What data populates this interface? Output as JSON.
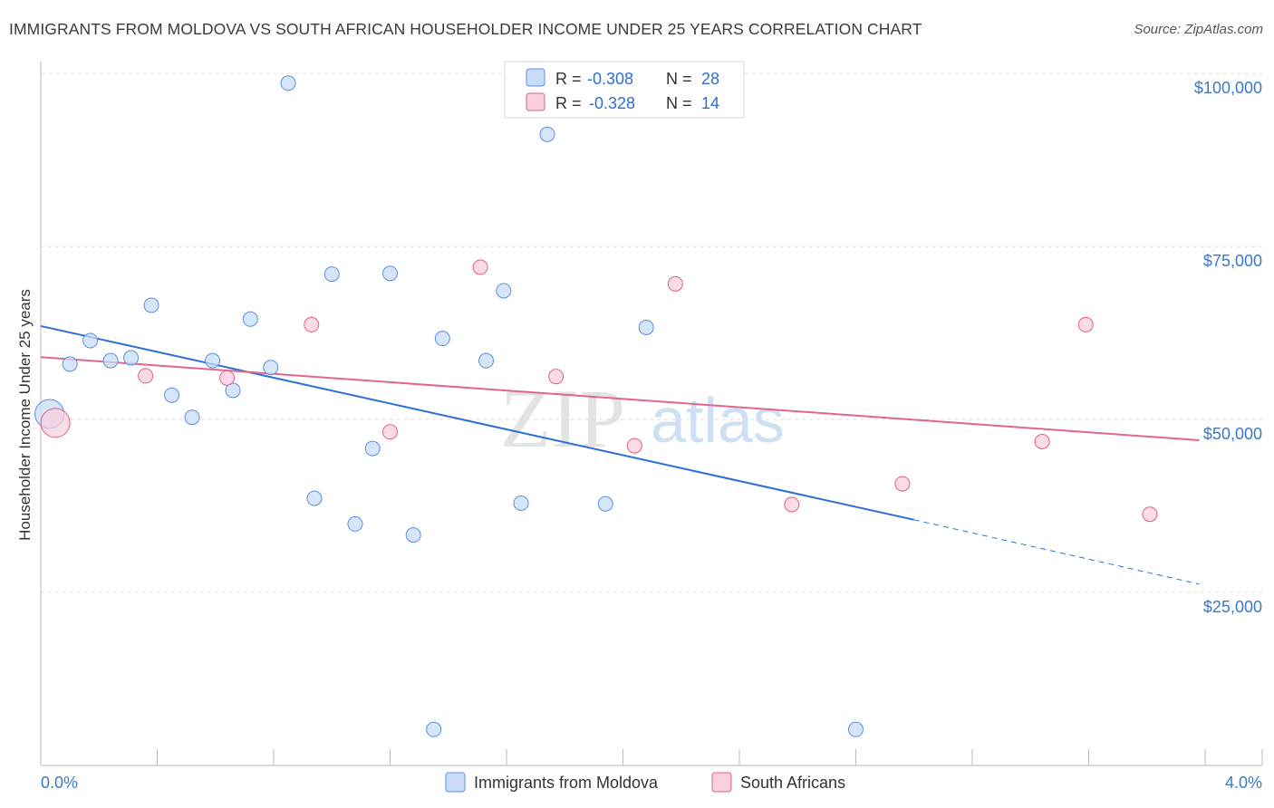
{
  "title": "IMMIGRANTS FROM MOLDOVA VS SOUTH AFRICAN HOUSEHOLDER INCOME UNDER 25 YEARS CORRELATION CHART",
  "source": "Source: ZipAtlas.com",
  "colors": {
    "blue": "#5b8fe0",
    "blue_fill": "#c9dcf7",
    "blue_line": "#2b6fd6",
    "pink": "#e0608a",
    "pink_fill": "#f9cfdc",
    "pink_line": "#e2658f",
    "axis_text": "#3b78c8",
    "grid": "#dddddd"
  },
  "legend": {
    "r_label": "R =",
    "n_label": "N =",
    "rows": [
      {
        "series": "moldova",
        "r": "-0.308",
        "n": "28"
      },
      {
        "series": "south_african",
        "r": "-0.328",
        "n": "14"
      }
    ]
  },
  "watermark": {
    "zip": "ZIP",
    "atlas": "atlas"
  },
  "chart_data": {
    "type": "scatter",
    "title": "IMMIGRANTS FROM MOLDOVA VS SOUTH AFRICAN HOUSEHOLDER INCOME UNDER 25 YEARS CORRELATION CHART",
    "xlabel": "",
    "ylabel": "Householder Income Under 25 years",
    "xlim": [
      0.0,
      4.0
    ],
    "ylim": [
      0,
      102500
    ],
    "x_tick_labels": [
      "0.0%",
      "4.0%"
    ],
    "y_ticks": [
      25000,
      50000,
      75000,
      100000
    ],
    "y_tick_labels": [
      "$25,000",
      "$50,000",
      "$75,000",
      "$100,000"
    ],
    "series": [
      {
        "name": "Immigrants from Moldova",
        "key": "moldova",
        "points": [
          {
            "x": 0.03,
            "y": 50800,
            "big": true
          },
          {
            "x": 0.1,
            "y": 58000
          },
          {
            "x": 0.17,
            "y": 61400
          },
          {
            "x": 0.24,
            "y": 58500
          },
          {
            "x": 0.31,
            "y": 58900
          },
          {
            "x": 0.38,
            "y": 66500
          },
          {
            "x": 0.45,
            "y": 53500
          },
          {
            "x": 0.52,
            "y": 50300
          },
          {
            "x": 0.59,
            "y": 58500
          },
          {
            "x": 0.66,
            "y": 54200
          },
          {
            "x": 0.72,
            "y": 64500
          },
          {
            "x": 0.79,
            "y": 57500
          },
          {
            "x": 0.85,
            "y": 98600
          },
          {
            "x": 0.94,
            "y": 38600
          },
          {
            "x": 1.0,
            "y": 71000
          },
          {
            "x": 1.08,
            "y": 34900
          },
          {
            "x": 1.14,
            "y": 45800
          },
          {
            "x": 1.2,
            "y": 71100
          },
          {
            "x": 1.28,
            "y": 33300
          },
          {
            "x": 1.35,
            "y": 5200
          },
          {
            "x": 1.38,
            "y": 61700
          },
          {
            "x": 1.53,
            "y": 58500
          },
          {
            "x": 1.59,
            "y": 68600
          },
          {
            "x": 1.65,
            "y": 37900
          },
          {
            "x": 1.74,
            "y": 91200
          },
          {
            "x": 1.94,
            "y": 37800
          },
          {
            "x": 2.08,
            "y": 63300
          },
          {
            "x": 2.8,
            "y": 5200
          }
        ],
        "trend": {
          "x0": 0.0,
          "y0": 63500,
          "x1": 3.0,
          "y1": 35500,
          "dash_x1": 3.98,
          "dash_y1": 26200
        }
      },
      {
        "name": "South Africans",
        "key": "south_african",
        "points": [
          {
            "x": 0.05,
            "y": 49500,
            "big": true
          },
          {
            "x": 0.36,
            "y": 56300
          },
          {
            "x": 0.64,
            "y": 56000
          },
          {
            "x": 0.93,
            "y": 63700
          },
          {
            "x": 1.2,
            "y": 48200
          },
          {
            "x": 1.51,
            "y": 72000
          },
          {
            "x": 1.77,
            "y": 56200
          },
          {
            "x": 2.04,
            "y": 46200
          },
          {
            "x": 2.18,
            "y": 69600
          },
          {
            "x": 2.58,
            "y": 37700
          },
          {
            "x": 2.96,
            "y": 40700
          },
          {
            "x": 3.44,
            "y": 46800
          },
          {
            "x": 3.59,
            "y": 63700
          },
          {
            "x": 3.81,
            "y": 36300
          }
        ],
        "trend": {
          "x0": 0.0,
          "y0": 59000,
          "x1": 3.98,
          "y1": 47000
        }
      }
    ],
    "legend_position": "top-center",
    "bottom_legend": [
      "Immigrants from Moldova",
      "South Africans"
    ]
  }
}
